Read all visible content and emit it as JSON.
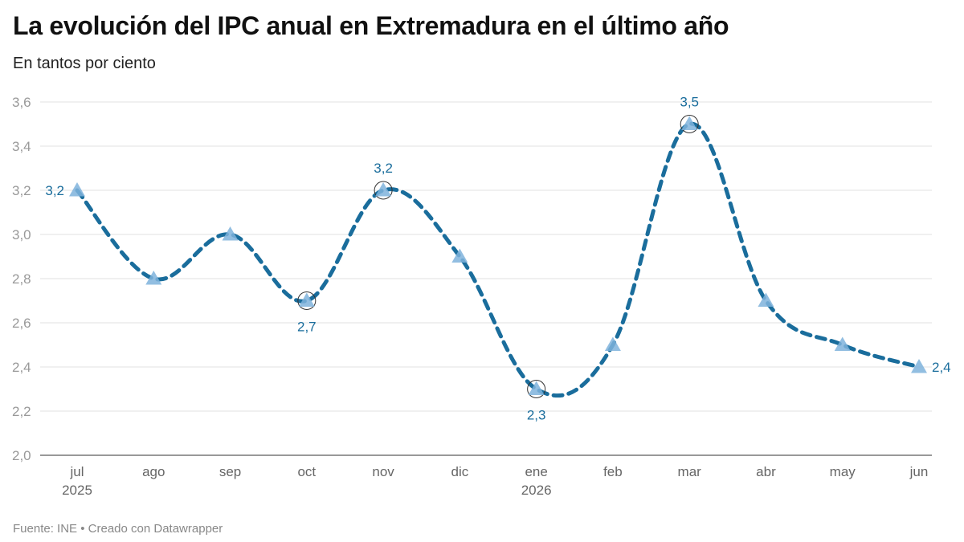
{
  "title": "La evolución del IPC anual en Extremadura en el último año",
  "subtitle": "En tantos por ciento",
  "footer": {
    "source": "Fuente: INE",
    "separator": "•",
    "credit": "Creado con Datawrapper"
  },
  "colors": {
    "line": "#1a6d9c",
    "marker": "#7fb3dc",
    "label": "#1a6d9c"
  },
  "chart_data": {
    "type": "line",
    "categories": [
      "jul",
      "ago",
      "sep",
      "oct",
      "nov",
      "dic",
      "ene",
      "feb",
      "mar",
      "abr",
      "may",
      "jun"
    ],
    "year_labels": [
      "2025",
      "",
      "",
      "",
      "",
      "",
      "2026",
      "",
      "",
      "",
      "",
      ""
    ],
    "series": [
      {
        "values": [
          3.2,
          2.8,
          3.0,
          2.7,
          3.2,
          2.9,
          2.3,
          2.5,
          3.5,
          2.7,
          2.5,
          2.4
        ],
        "line_style": "dashed",
        "marker": "triangle"
      }
    ],
    "ylim": [
      2.0,
      3.6
    ],
    "yticks": [
      "2,0",
      "2,2",
      "2,4",
      "2,6",
      "2,8",
      "3,0",
      "3,2",
      "3,4",
      "3,6"
    ],
    "ytick_values": [
      2.0,
      2.2,
      2.4,
      2.6,
      2.8,
      3.0,
      3.2,
      3.4,
      3.6
    ],
    "grid": true,
    "annotations": [
      {
        "index": 0,
        "text": "3,2",
        "position": "left",
        "circled": false
      },
      {
        "index": 3,
        "text": "2,7",
        "position": "below",
        "circled": true
      },
      {
        "index": 4,
        "text": "3,2",
        "position": "above",
        "circled": true
      },
      {
        "index": 6,
        "text": "2,3",
        "position": "below",
        "circled": true
      },
      {
        "index": 8,
        "text": "3,5",
        "position": "above",
        "circled": true
      },
      {
        "index": 11,
        "text": "2,4",
        "position": "right",
        "circled": false
      }
    ]
  }
}
